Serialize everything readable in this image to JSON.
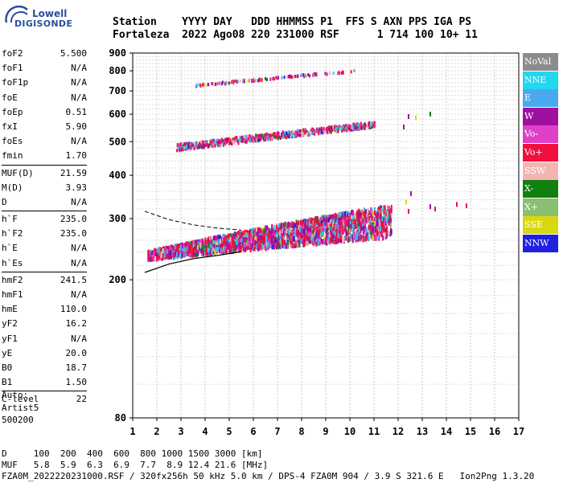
{
  "logo": {
    "line1": "Lowell",
    "line2": "DIGISONDE"
  },
  "header": {
    "line1": "Station    YYYY DAY   DDD HHMMSS P1  FFS S AXN PPS IGA PS",
    "line2": "Fortaleza  2022 Ago08 220 231000 RSF      1 714 100 10+ 11"
  },
  "params": [
    {
      "k": "foF2",
      "v": "5.500"
    },
    {
      "k": "foF1",
      "v": "N/A"
    },
    {
      "k": "foF1p",
      "v": "N/A"
    },
    {
      "k": "foE",
      "v": "N/A"
    },
    {
      "k": "foEp",
      "v": "0.51"
    },
    {
      "k": "fxI",
      "v": "5.90"
    },
    {
      "k": "foEs",
      "v": "N/A"
    },
    {
      "k": "fmin",
      "v": "1.70"
    },
    {
      "sep": true
    },
    {
      "k": "MUF(D)",
      "v": "21.59"
    },
    {
      "k": "M(D)",
      "v": "3.93"
    },
    {
      "k": "D",
      "v": "N/A"
    },
    {
      "sep": true
    },
    {
      "k": "h`F",
      "v": "235.0"
    },
    {
      "k": "h`F2",
      "v": "235.0"
    },
    {
      "k": "h`E",
      "v": "N/A"
    },
    {
      "k": "h`Es",
      "v": "N/A"
    },
    {
      "sep": true
    },
    {
      "k": "hmF2",
      "v": "241.5"
    },
    {
      "k": "hmF1",
      "v": "N/A"
    },
    {
      "k": "hmE",
      "v": "110.0"
    },
    {
      "k": "yF2",
      "v": "16.2"
    },
    {
      "k": "yF1",
      "v": "N/A"
    },
    {
      "k": "yE",
      "v": "20.0"
    },
    {
      "k": "B0",
      "v": "18.7"
    },
    {
      "k": "B1",
      "v": "1.50"
    },
    {
      "sep": true
    },
    {
      "k": "C-level",
      "v": "22"
    }
  ],
  "auto": {
    "l1": "Auto:",
    "l2": "Artist5",
    "l3": "500200"
  },
  "legend": [
    {
      "label": "NoVal",
      "color": "#8c8c8c"
    },
    {
      "label": "NNE",
      "color": "#20d8f0"
    },
    {
      "label": "E",
      "color": "#4aa8f0"
    },
    {
      "label": "W",
      "color": "#a010a0"
    },
    {
      "label": "Vo-",
      "color": "#e040c8"
    },
    {
      "label": "Vo+",
      "color": "#f01040"
    },
    {
      "label": "SSW",
      "color": "#f4b4b4"
    },
    {
      "label": "X-",
      "color": "#108010"
    },
    {
      "label": "X+",
      "color": "#88c070"
    },
    {
      "label": "SSE",
      "color": "#d8d810"
    },
    {
      "label": "NNW",
      "color": "#2020e0"
    }
  ],
  "footer": {
    "l1": "D     100  200  400  600  800 1000 1500 3000 [km]",
    "l2": "MUF   5.8  5.9  6.3  6.9  7.7  8.9 12.4 21.6 [MHz]",
    "l3": "FZA0M_2022220231000.RSF / 320fx256h 50 kHz 5.0 km / DPS-4 FZA0M 904 / 3.9 S 321.6 E   Ion2Png 1.3.20"
  },
  "chart_data": {
    "type": "scatter",
    "title": "",
    "xlabel": "",
    "ylabel": "",
    "xlim": [
      1,
      17
    ],
    "ylim": [
      80,
      900
    ],
    "x_ticks": [
      1,
      2,
      3,
      4,
      5,
      6,
      7,
      8,
      9,
      10,
      11,
      12,
      13,
      14,
      15,
      16,
      17
    ],
    "y_ticks": [
      80,
      200,
      300,
      400,
      500,
      600,
      700,
      800,
      900
    ],
    "y_scale": "log",
    "grid": true,
    "legend_position": "right",
    "traces": [
      {
        "name": "F-layer O trace (1st hop)",
        "x_range": [
          1.6,
          11.7
        ],
        "h_start": 235,
        "h_end": 285,
        "spread": 40
      },
      {
        "name": "F-layer 2nd hop",
        "x_range": [
          2.8,
          11.0
        ],
        "h_start": 480,
        "h_end": 560,
        "spread": 35
      },
      {
        "name": "F-layer 3rd hop",
        "x_range": [
          3.6,
          10.2
        ],
        "h_start": 730,
        "h_end": 805,
        "spread": 15
      }
    ],
    "profile_curve": {
      "x": [
        1.5,
        2.5,
        3.5,
        4.5,
        5.5
      ],
      "y": [
        210,
        222,
        230,
        235,
        241
      ]
    },
    "dashed_curve": {
      "x": [
        1.5,
        2.5,
        3.5,
        4.5,
        5.5
      ],
      "y": [
        315,
        298,
        288,
        282,
        278
      ]
    }
  }
}
